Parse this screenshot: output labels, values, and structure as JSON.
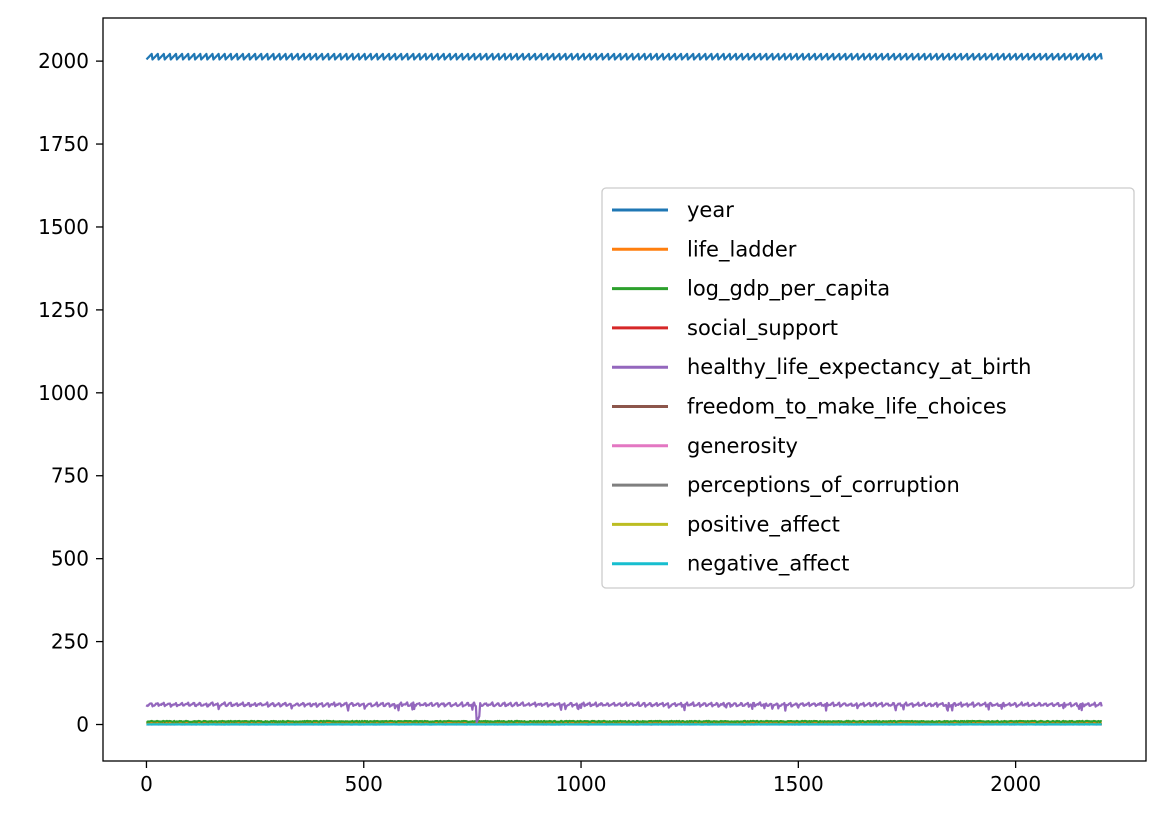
{
  "chart_data": {
    "type": "line",
    "title": "",
    "xlabel": "",
    "ylabel": "",
    "xlim": [
      -100,
      2300
    ],
    "ylim": [
      -110,
      2130
    ],
    "xticks": [
      0,
      500,
      1000,
      1500,
      2000
    ],
    "yticks": [
      0,
      250,
      500,
      750,
      1000,
      1250,
      1500,
      1750,
      2000
    ],
    "x_range": [
      0,
      2199
    ],
    "grid": false,
    "legend_position": "center-right",
    "series": [
      {
        "name": "year",
        "color": "#1f77b4",
        "mean": 2014,
        "min": 2005,
        "max": 2023,
        "cycle_length": 14
      },
      {
        "name": "life_ladder",
        "color": "#ff7f0e",
        "mean": 5.5,
        "min": 2.2,
        "max": 8.0
      },
      {
        "name": "log_gdp_per_capita",
        "color": "#2ca02c",
        "mean": 9.4,
        "min": 5.5,
        "max": 11.7
      },
      {
        "name": "social_support",
        "color": "#d62728",
        "mean": 0.81,
        "min": 0.23,
        "max": 0.99
      },
      {
        "name": "healthy_life_expectancy_at_birth",
        "color": "#9467bd",
        "mean": 63.5,
        "min": 7,
        "max": 74
      },
      {
        "name": "freedom_to_make_life_choices",
        "color": "#8c564b",
        "mean": 0.75,
        "min": 0.23,
        "max": 0.99
      },
      {
        "name": "generosity",
        "color": "#e377c2",
        "mean": 0.0,
        "min": -0.34,
        "max": 0.7
      },
      {
        "name": "perceptions_of_corruption",
        "color": "#7f7f7f",
        "mean": 0.74,
        "min": 0.04,
        "max": 0.98
      },
      {
        "name": "positive_affect",
        "color": "#bcbd22",
        "mean": 0.65,
        "min": 0.18,
        "max": 0.88
      },
      {
        "name": "negative_affect",
        "color": "#17becf",
        "mean": 0.27,
        "min": 0.08,
        "max": 0.71
      }
    ]
  }
}
